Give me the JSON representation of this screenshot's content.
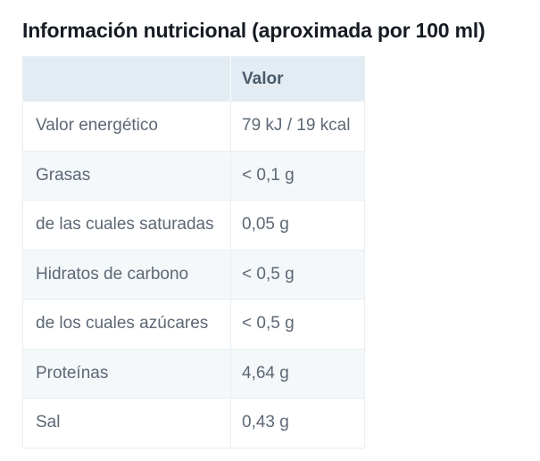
{
  "page": {
    "title": "Información nutricional (aproximada por 100 ml)"
  },
  "table": {
    "header": {
      "label": "",
      "value": "Valor"
    },
    "rows": [
      {
        "label": "Valor energético",
        "value": "79 kJ / 19 kcal"
      },
      {
        "label": "Grasas",
        "value": "< 0,1 g"
      },
      {
        "label": "de las cuales saturadas",
        "value": "0,05 g"
      },
      {
        "label": "Hidratos de carbono",
        "value": "< 0,5 g"
      },
      {
        "label": "de los cuales azúcares",
        "value": "< 0,5 g"
      },
      {
        "label": "Proteínas",
        "value": "4,64 g"
      },
      {
        "label": "Sal",
        "value": "0,43 g"
      }
    ]
  },
  "colors": {
    "title_text": "#171b24",
    "text": "#5d6875",
    "header_text": "#4b5b6b",
    "header_bg": "#e2ecf2",
    "row_bg": "#ffffff",
    "row_alt_bg": "#f5f8fa",
    "border": "#e8eef2",
    "header_divider": "#fafcfd"
  }
}
